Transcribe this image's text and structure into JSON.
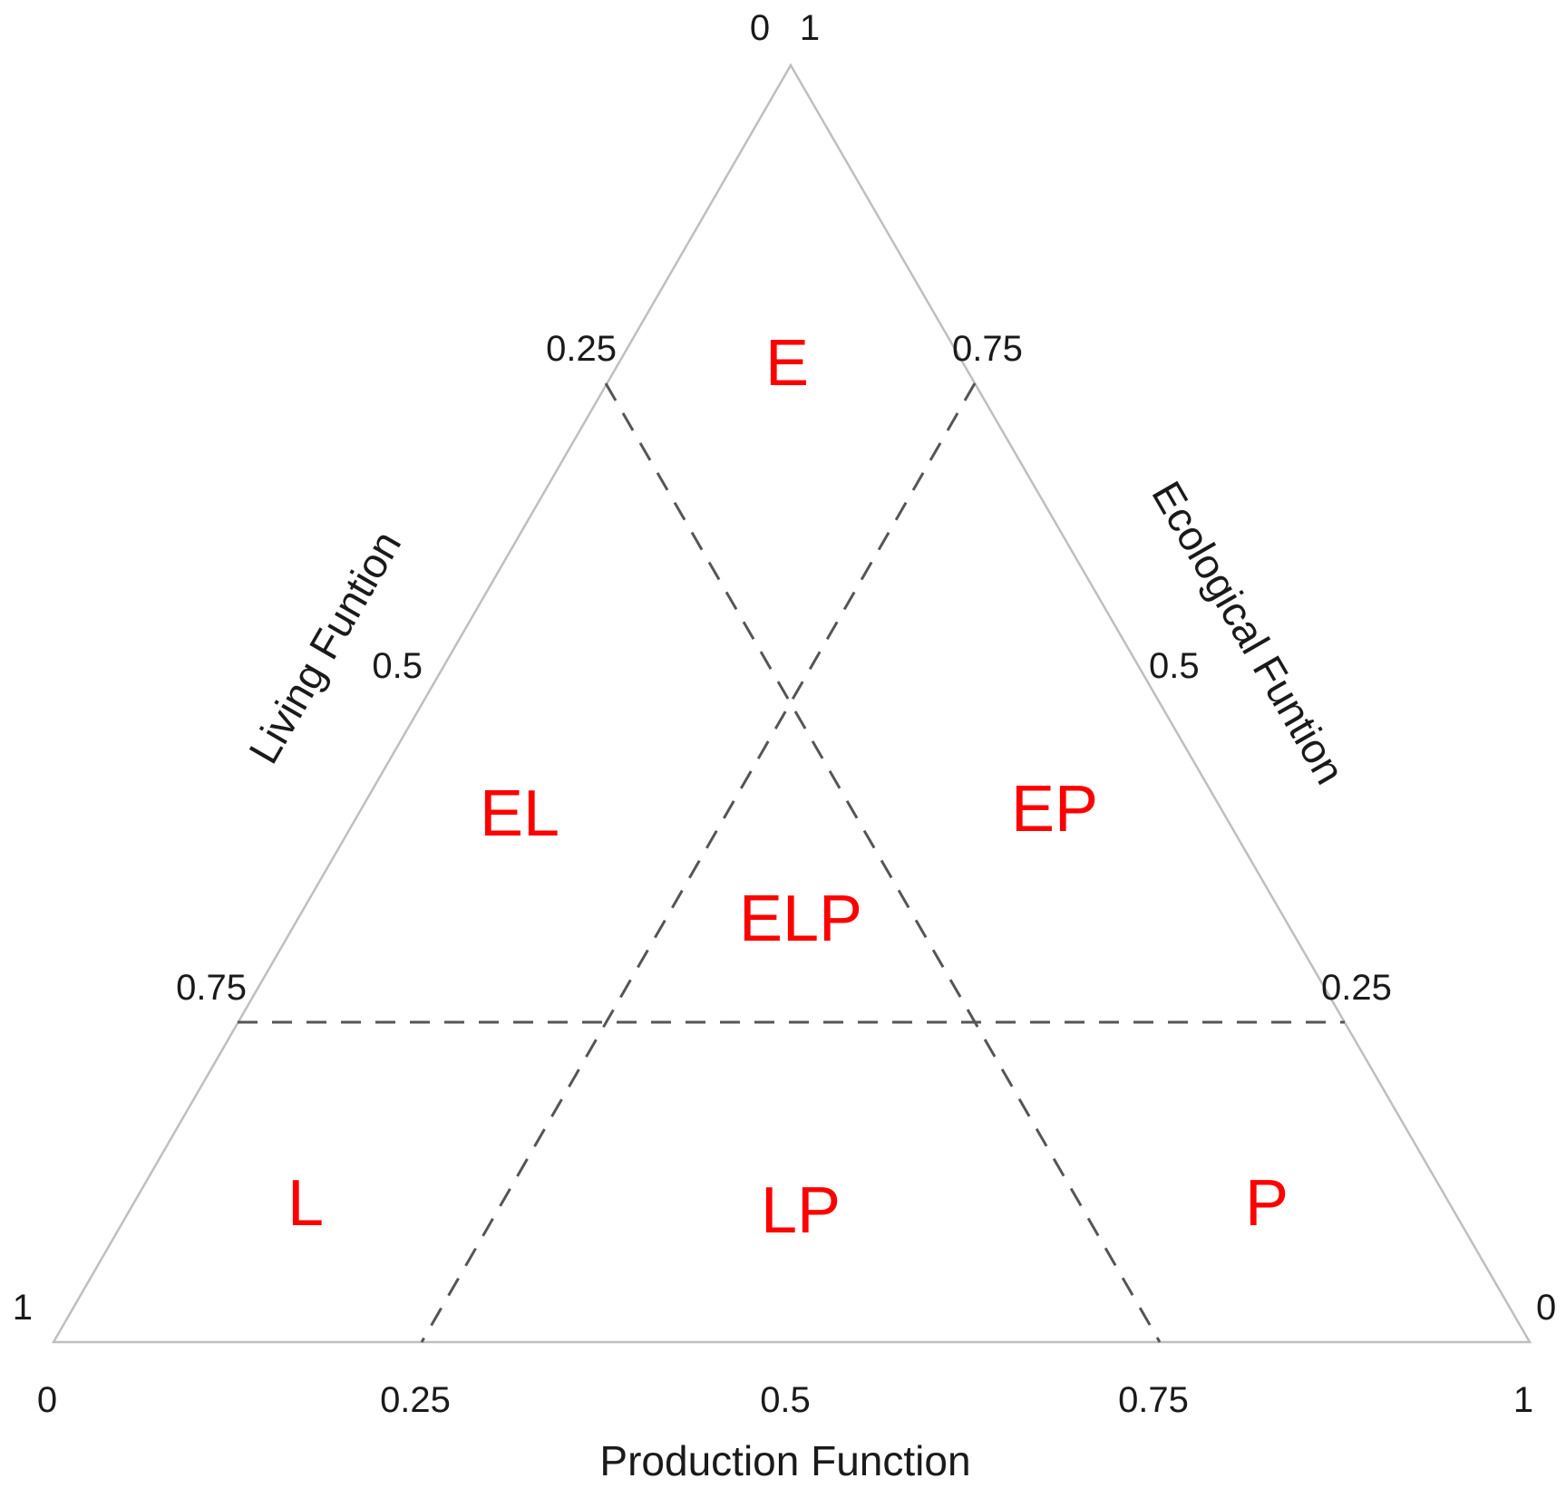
{
  "axes": {
    "bottom": {
      "title": "Production Function",
      "ticks": [
        "0",
        "0.25",
        "0.5",
        "0.75",
        "1"
      ]
    },
    "left": {
      "title": "Living Funtion",
      "ticks": [
        "0",
        "0.25",
        "0.5",
        "0.75",
        "1"
      ]
    },
    "right": {
      "title": "Ecological Funtion",
      "ticks": [
        "1",
        "0.75",
        "0.5",
        "0.25",
        "0"
      ]
    }
  },
  "regions": {
    "e": "E",
    "el": "EL",
    "ep": "EP",
    "elp": "ELP",
    "l": "L",
    "lp": "LP",
    "p": "P"
  },
  "colors": {
    "region_text": "#ff0000",
    "triangle_edge": "#bfbfbf",
    "threshold_line": "#555555"
  }
}
